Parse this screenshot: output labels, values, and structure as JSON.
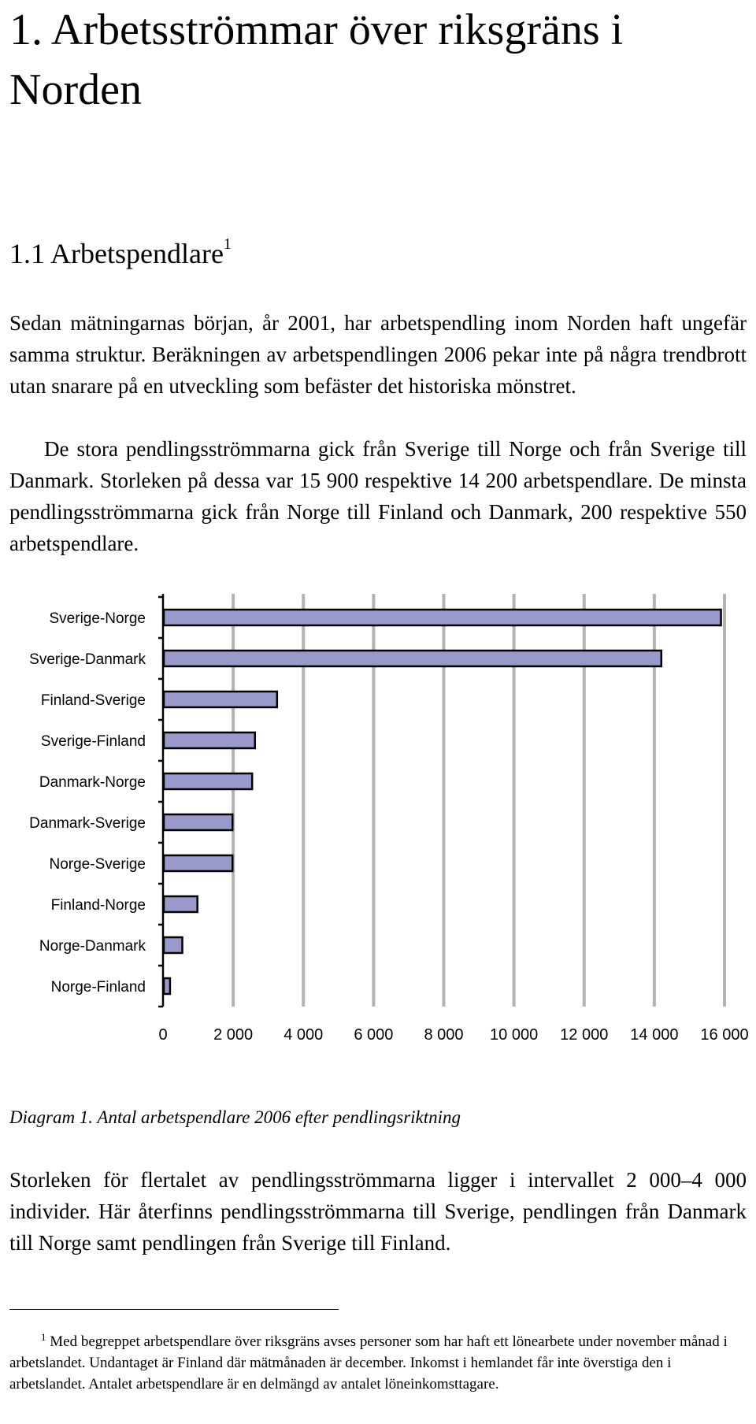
{
  "section": {
    "title": "1. Arbetsströmmar över riksgräns i Norden",
    "subheading": "1.1 Arbetspendlare",
    "subheading_note": "1"
  },
  "paragraphs": {
    "p1": "Sedan mätningarnas början, år 2001, har arbetspendling inom Norden haft ungefär samma struktur. Beräkningen av arbetspendlingen 2006 pekar inte på några trendbrott utan snarare på en utveckling som befäster det historiska mönstret.",
    "p2": "De stora pendlingsströmmarna gick från Sverige till Norge och från Sverige till Danmark. Storleken på dessa var 15 900 respektive 14 200 arbetspendlare. De minsta pendlingsströmmarna gick från Norge till Finland och Danmark, 200 respektive 550 arbetspendlare.",
    "p3": "Storleken för flertalet av pendlingsströmmarna ligger i intervallet 2 000–4 000 individer. Här återfinns pendlingsströmmarna till Sverige, pendlingen från Danmark till Norge samt pendlingen från Sverige till Finland."
  },
  "caption": "Diagram 1. Antal arbetspendlare 2006 efter pendlingsriktning",
  "footnote": {
    "marker": "1",
    "text": "Med begreppet arbetspendlare över riksgräns avses personer som har haft ett lönearbete under november månad i arbetslandet. Undantaget är Finland där mätmånaden är december. Inkomst i hemlandet får inte överstiga den i arbetslandet. Antalet arbetspendlare är en delmängd av antalet löneinkomsttagare."
  },
  "colors": {
    "bar_fill": "#9999cc",
    "bar_stroke": "#000000",
    "grid": "#b3b3b3"
  },
  "chart_data": {
    "type": "bar",
    "orientation": "horizontal",
    "categories": [
      "Sverige-Norge",
      "Sverige-Danmark",
      "Finland-Sverige",
      "Sverige-Finland",
      "Danmark-Norge",
      "Danmark-Sverige",
      "Norge-Sverige",
      "Finland-Norge",
      "Norge-Danmark",
      "Norge-Finland"
    ],
    "values": [
      15900,
      14200,
      3250,
      2620,
      2540,
      1980,
      1980,
      980,
      550,
      200
    ],
    "xlim": [
      0,
      16000
    ],
    "xticks": [
      "0",
      "2 000",
      "4 000",
      "6 000",
      "8 000",
      "10 000",
      "12 000",
      "14 000",
      "16 000"
    ],
    "xtick_values": [
      0,
      2000,
      4000,
      6000,
      8000,
      10000,
      12000,
      14000,
      16000
    ],
    "grid": "vertical",
    "title": "",
    "xlabel": "",
    "ylabel": ""
  }
}
